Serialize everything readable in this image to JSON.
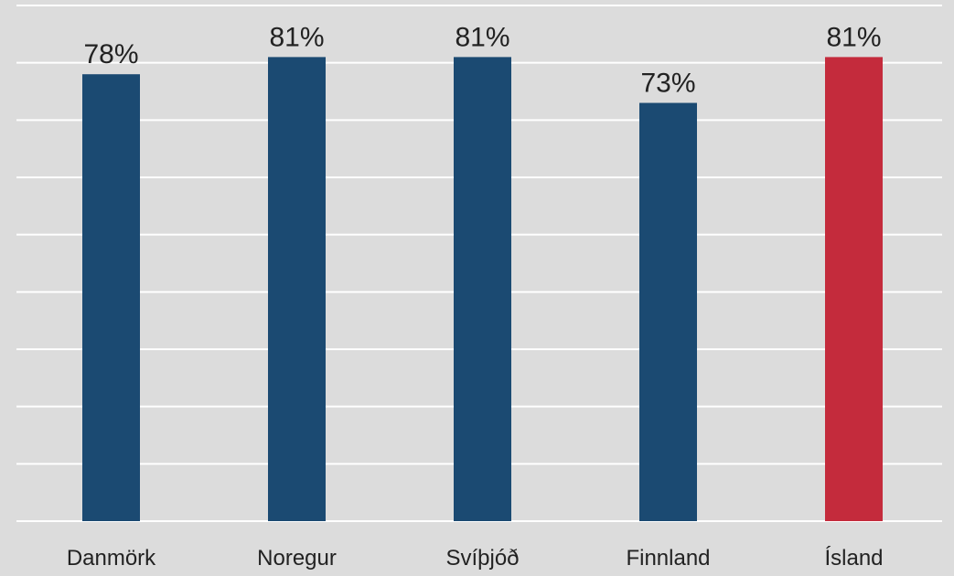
{
  "chart_data": {
    "type": "bar",
    "categories": [
      "Danmörk",
      "Noregur",
      "Svíþjóð",
      "Finnland",
      "Ísland"
    ],
    "values": [
      78,
      81,
      81,
      73,
      81
    ],
    "value_labels": [
      "78%",
      "81%",
      "81%",
      "73%",
      "81%"
    ],
    "colors": [
      "#1b4a72",
      "#1b4a72",
      "#1b4a72",
      "#1b4a72",
      "#c42b3c"
    ],
    "ylim": [
      0,
      90
    ],
    "yticks": [
      0,
      10,
      20,
      30,
      40,
      50,
      60,
      70,
      80,
      90
    ],
    "grid": true
  }
}
